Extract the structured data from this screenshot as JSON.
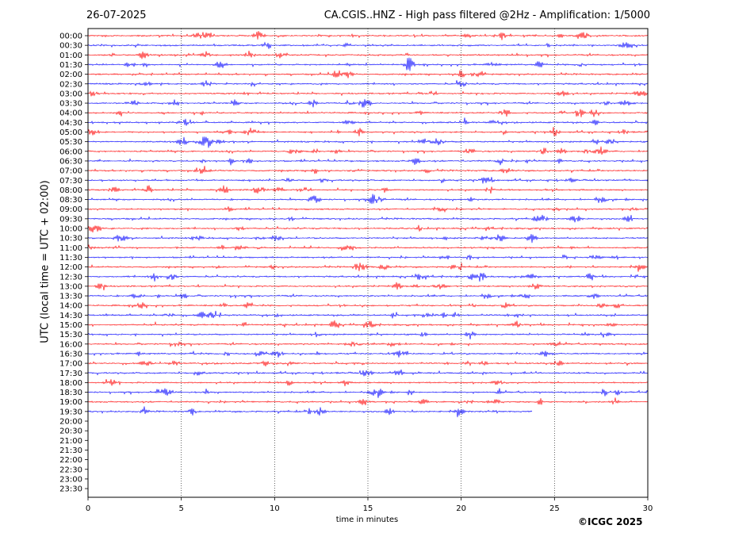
{
  "header": {
    "date": "26-07-2025",
    "title": "CA.CGIS..HNZ - High pass filtered @2Hz - Amplification: 1/5000"
  },
  "footer": {
    "copyright": "©ICGC 2025"
  },
  "colors": {
    "trace_a": "#ff0000",
    "trace_b": "#0000ff",
    "gridline": "#000000"
  },
  "chart_data": {
    "type": "line",
    "title": "CA.CGIS..HNZ - High pass filtered @2Hz - Amplification: 1/5000",
    "xlabel": "time in minutes",
    "ylabel": "UTC (local time = UTC + 02:00)",
    "xlim": [
      0,
      30
    ],
    "x_ticks": [
      0,
      5,
      10,
      15,
      20,
      25,
      30
    ],
    "grid": "vertical dotted lines at 5-minute intervals",
    "y_tick_labels": [
      "00:00",
      "00:30",
      "01:00",
      "01:30",
      "02:00",
      "02:30",
      "03:00",
      "03:30",
      "04:00",
      "04:30",
      "05:00",
      "05:30",
      "06:00",
      "06:30",
      "07:00",
      "07:30",
      "08:00",
      "08:30",
      "09:00",
      "09:30",
      "10:00",
      "10:30",
      "11:00",
      "11:30",
      "12:00",
      "12:30",
      "13:00",
      "13:30",
      "14:00",
      "14:30",
      "15:00",
      "15:30",
      "16:00",
      "16:30",
      "17:00",
      "17:30",
      "18:00",
      "18:30",
      "19:00",
      "19:30",
      "20:00",
      "20:30",
      "21:00",
      "21:30",
      "22:00",
      "22:30",
      "23:00",
      "23:30"
    ],
    "trace_end_minutes": [
      30,
      30,
      30,
      30,
      30,
      30,
      30,
      30,
      30,
      30,
      30,
      30,
      30,
      30,
      30,
      30,
      30,
      30,
      30,
      30,
      30,
      30,
      30,
      30,
      30,
      30,
      30,
      30,
      30,
      30,
      30,
      30,
      30,
      30,
      30,
      30,
      30,
      30,
      30,
      23.8,
      0,
      0,
      0,
      0,
      0,
      0,
      0,
      0
    ],
    "trace_colors_alternate": [
      "red",
      "blue"
    ]
  }
}
